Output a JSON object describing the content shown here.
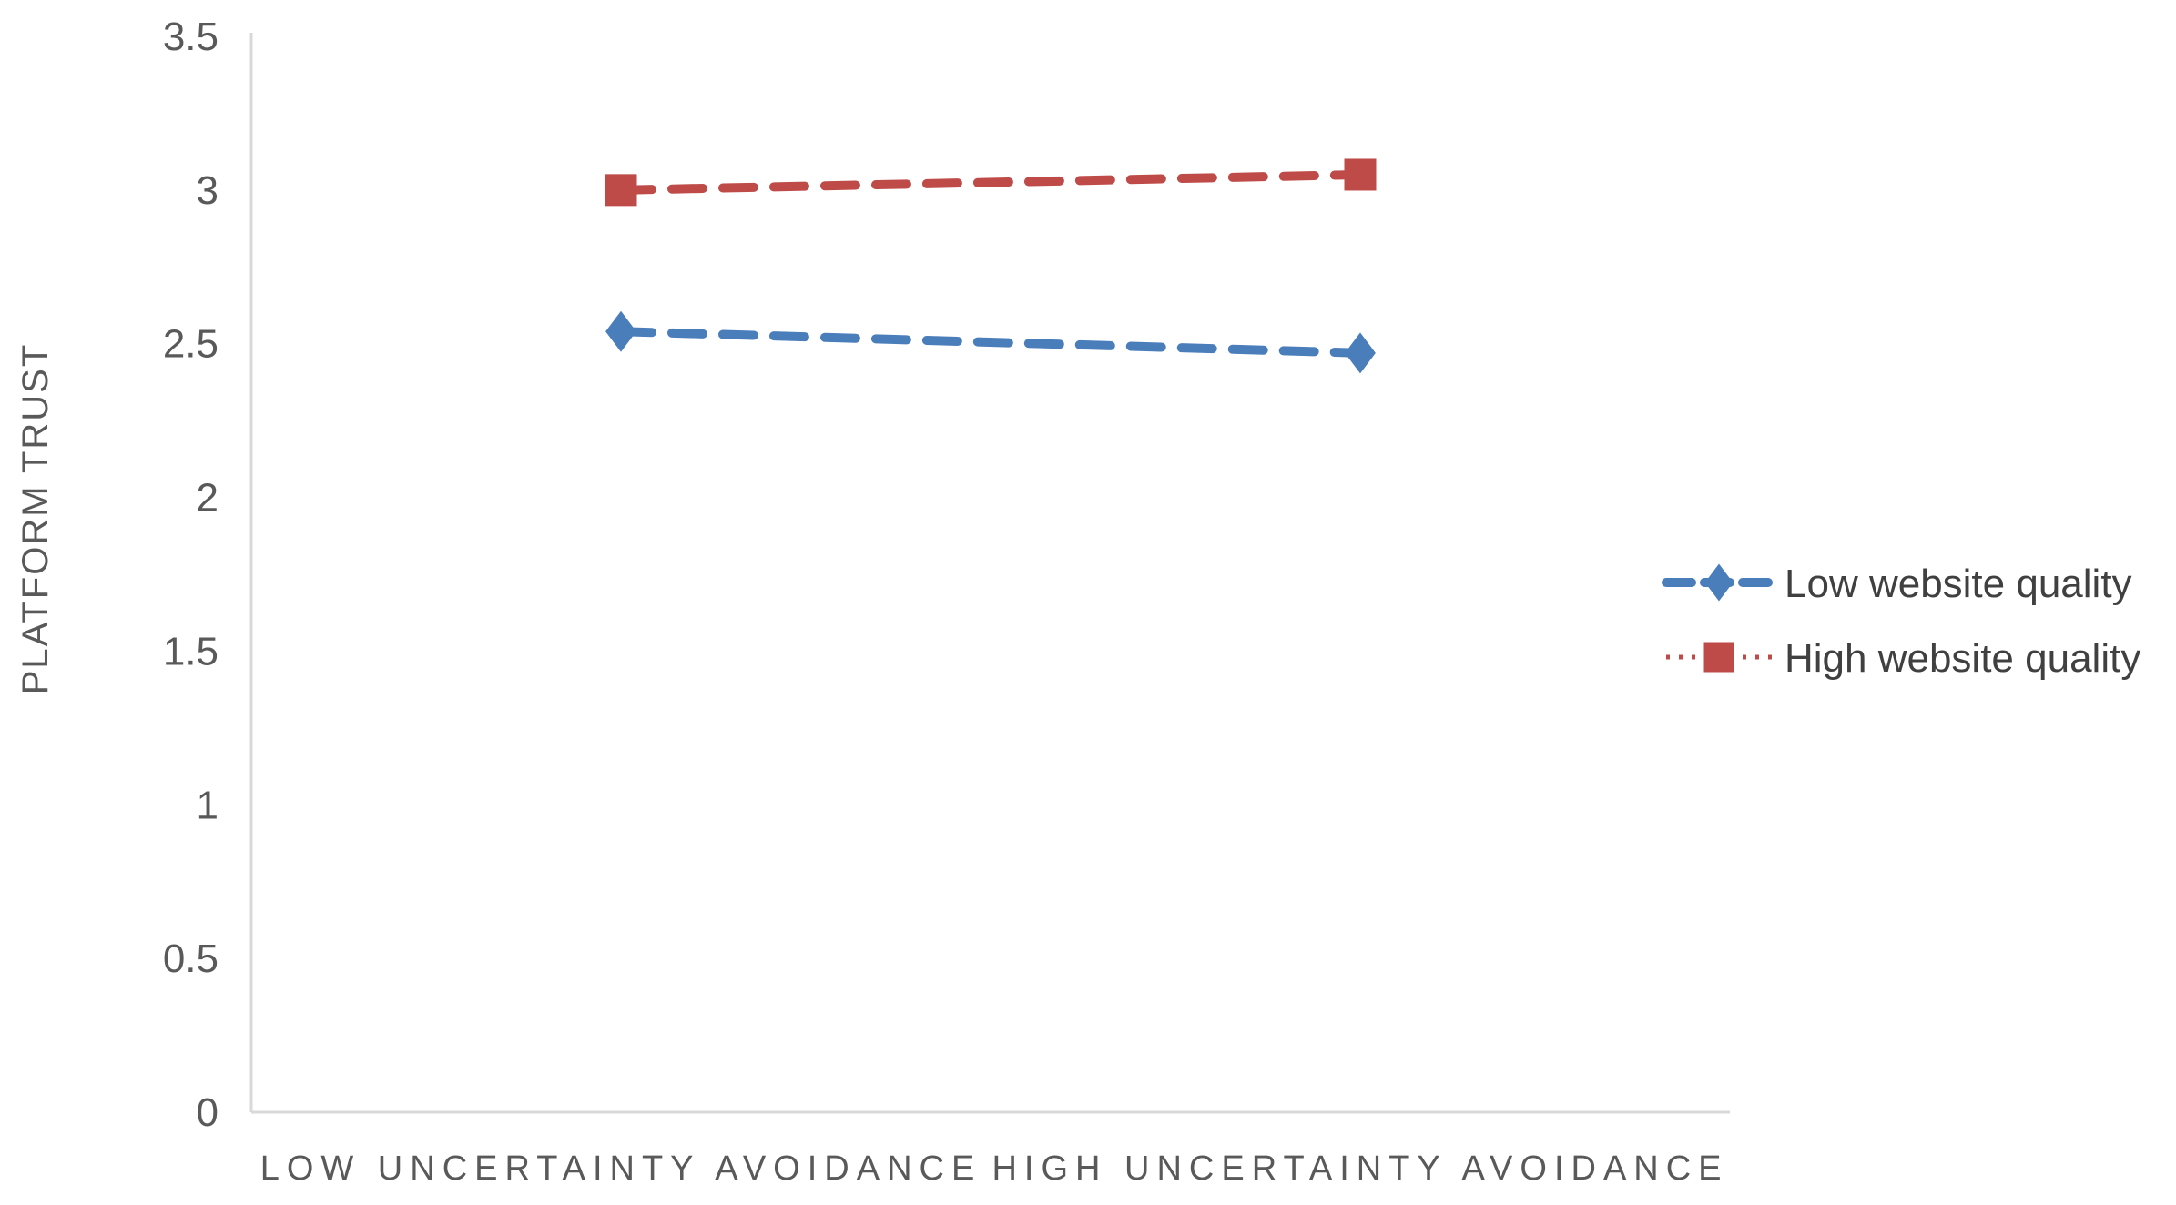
{
  "chart_data": {
    "type": "line",
    "title": "",
    "xlabel": "",
    "ylabel": "PLATFORM TRUST",
    "categories": [
      "LOW UNCERTAINTY AVOIDANCE",
      "HIGH UNCERTAINTY AVOIDANCE"
    ],
    "ylim": [
      0,
      3.5
    ],
    "yticks": [
      "0",
      "0.5",
      "1",
      "1.5",
      "2",
      "2.5",
      "3",
      "3.5"
    ],
    "grid": false,
    "legend_position": "right",
    "series": [
      {
        "name": "Low website quality",
        "values": [
          2.54,
          2.47
        ],
        "color": "#4a7ebb",
        "marker": "diamond",
        "line_style": "dashed"
      },
      {
        "name": "High website quality",
        "values": [
          3.0,
          3.05
        ],
        "color": "#be4b48",
        "marker": "square",
        "line_style": "dashed"
      }
    ]
  }
}
